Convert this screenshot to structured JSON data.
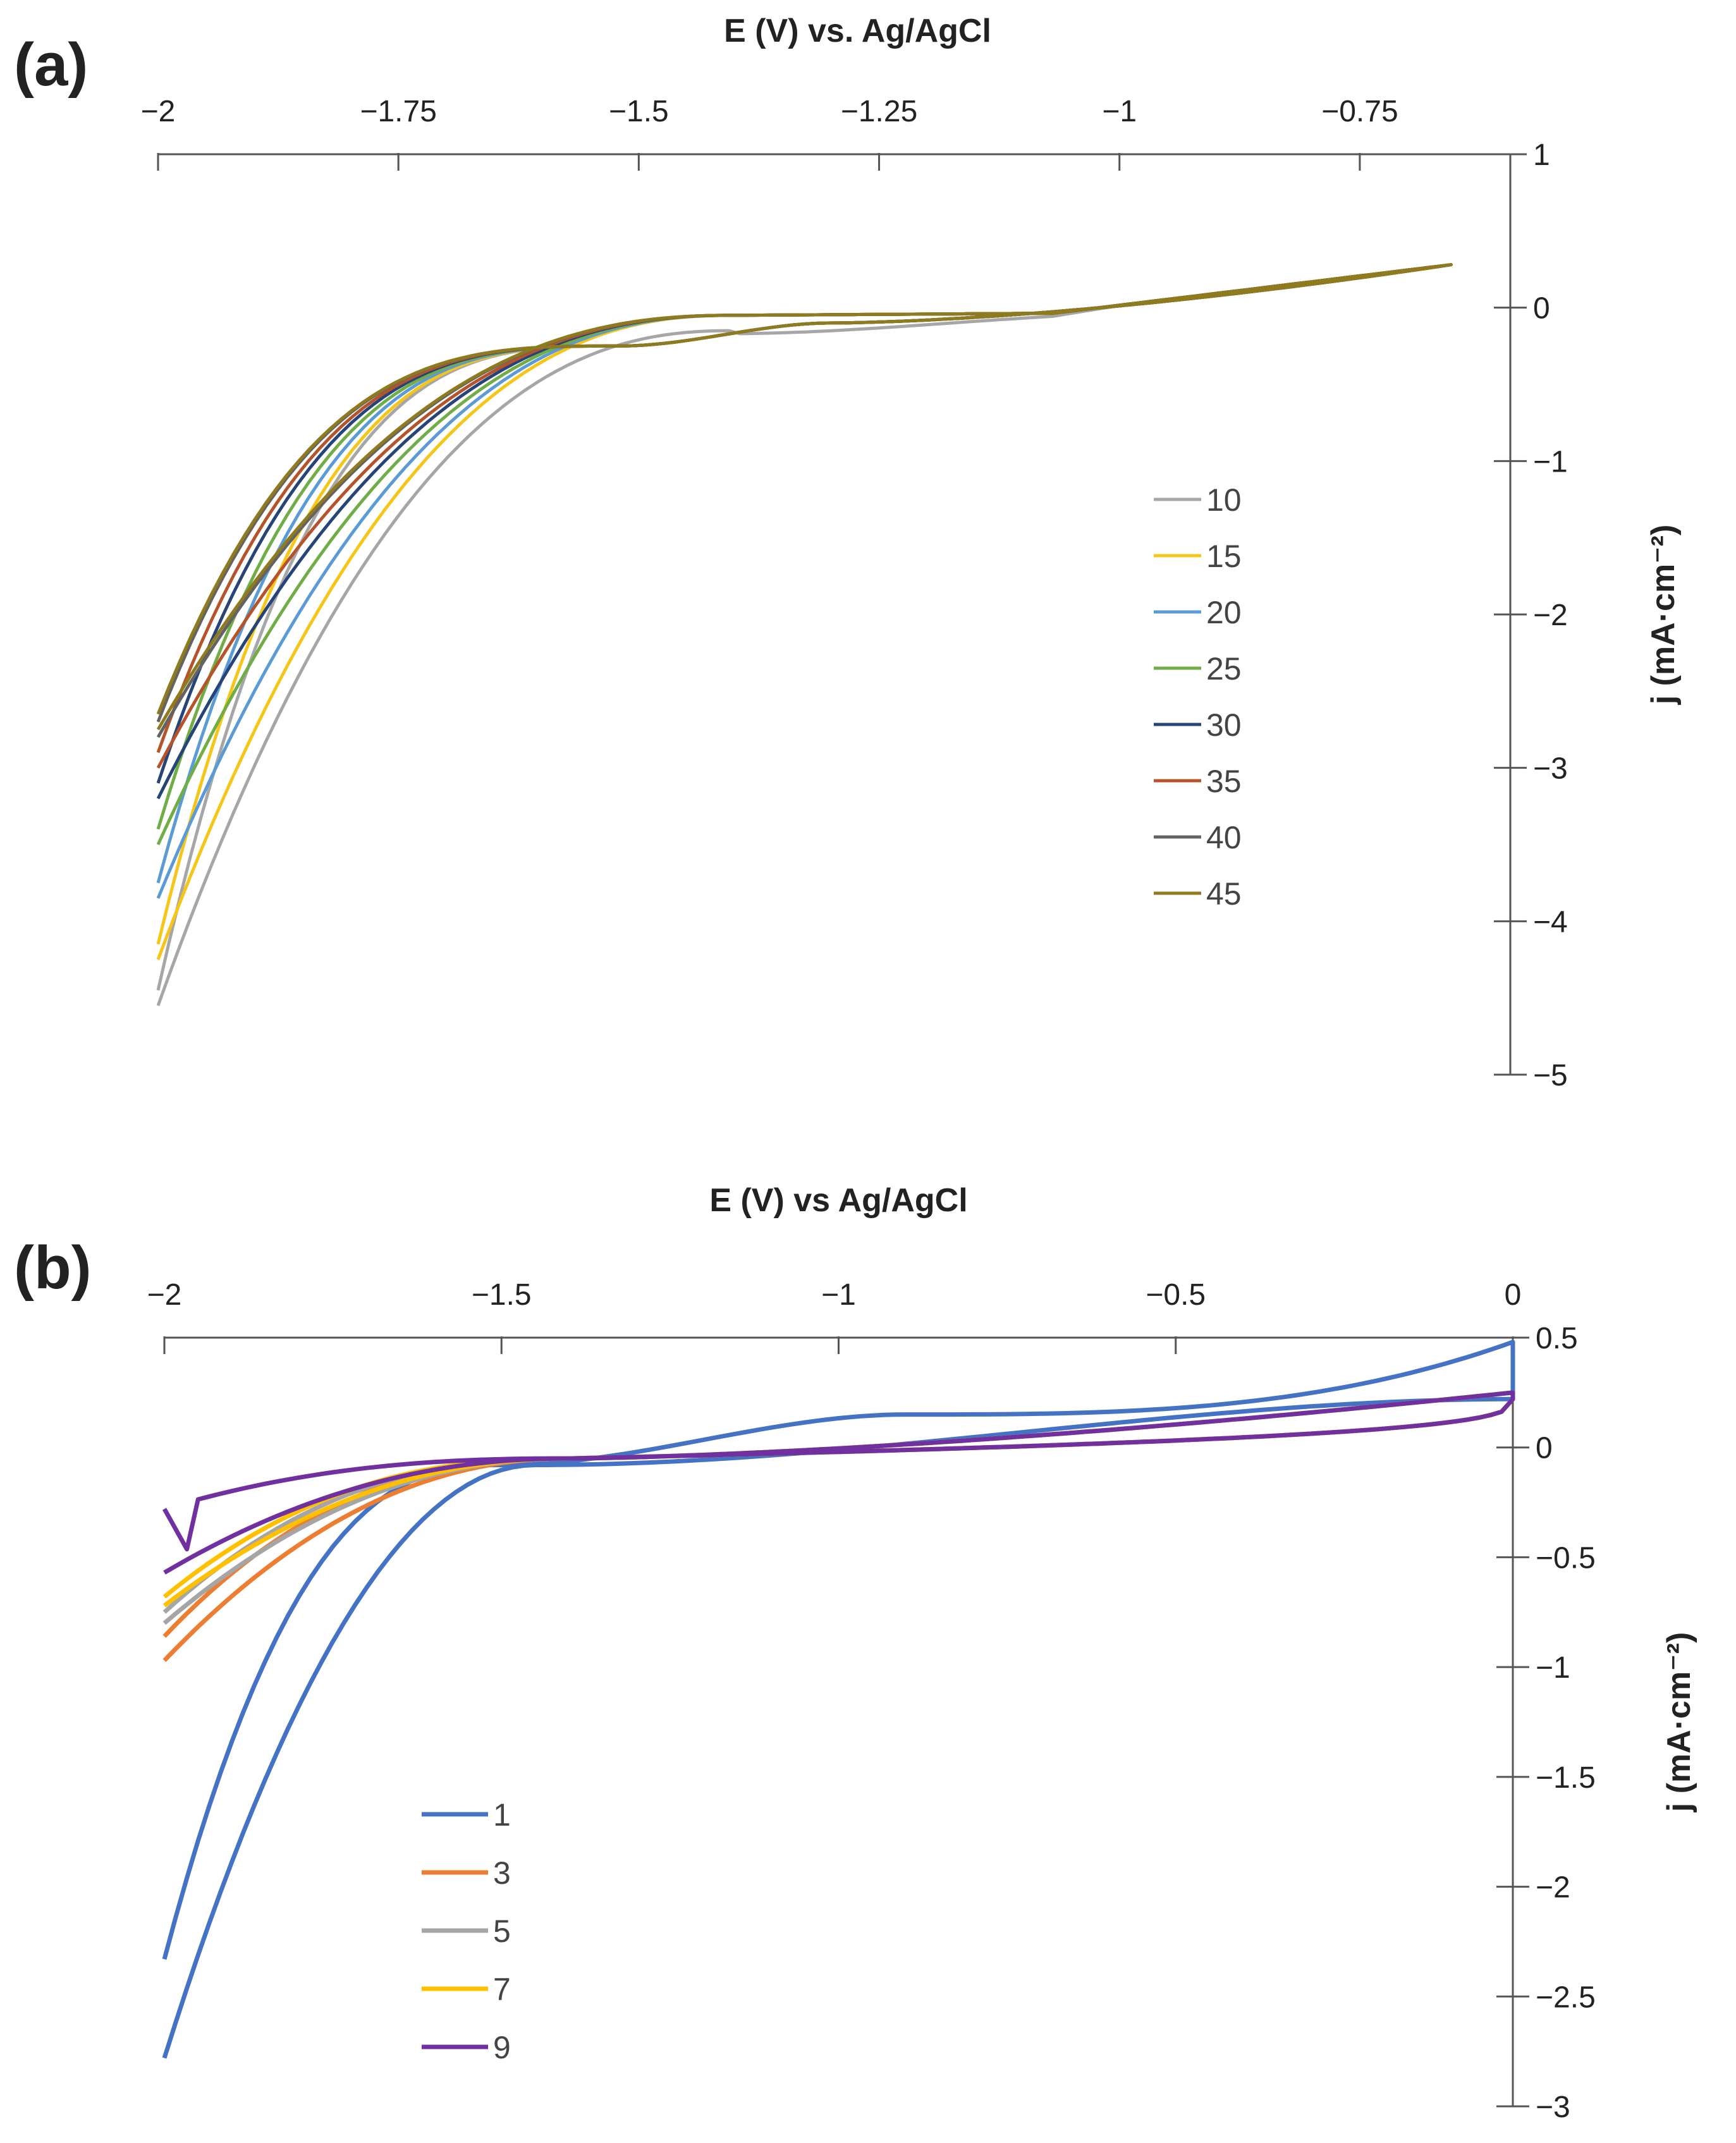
{
  "chart_data": [
    {
      "panel": "(a)",
      "type": "line",
      "xlabel": "E (V) vs. Ag/AgCl",
      "ylabel": "j (mA·cm⁻²)",
      "xlim": [
        -2,
        -0.65
      ],
      "ylim": [
        -5,
        1
      ],
      "x_ticks": [
        -2,
        -1.75,
        -1.5,
        -1.25,
        -1,
        -0.75
      ],
      "x_tick_labels": [
        "−2",
        "−1.75",
        "−1.5",
        "−1.25",
        "−1",
        "−0.75"
      ],
      "y_ticks": [
        1,
        0,
        -1,
        -2,
        -3,
        -4,
        -5
      ],
      "y_tick_labels": [
        "1",
        "0",
        "−1",
        "−2",
        "−3",
        "−4",
        "−5"
      ],
      "x_axis_position": "top",
      "y_axis_position": "right",
      "legend_position": "center-right",
      "series": [
        {
          "name": "10",
          "color": "#a6a6a6",
          "min_j": -4.55,
          "return_j": -0.25
        },
        {
          "name": "15",
          "color": "#f5c518",
          "min_j": -4.25,
          "return_j": -0.2
        },
        {
          "name": "20",
          "color": "#5b9bd5",
          "min_j": -3.85,
          "return_j": -0.17
        },
        {
          "name": "25",
          "color": "#70ad47",
          "min_j": -3.5,
          "return_j": -0.14
        },
        {
          "name": "30",
          "color": "#264478",
          "min_j": -3.2,
          "return_j": -0.12
        },
        {
          "name": "35",
          "color": "#b5532a",
          "min_j": -3.0,
          "return_j": -0.1
        },
        {
          "name": "40",
          "color": "#636363",
          "min_j": -2.8,
          "return_j": -0.09
        },
        {
          "name": "45",
          "color": "#8f7a1e",
          "min_j": -2.75,
          "return_j": -0.08
        }
      ]
    },
    {
      "panel": "(b)",
      "type": "line",
      "xlabel": "E (V) vs Ag/AgCl",
      "ylabel": "j (mA·cm⁻²)",
      "xlim": [
        -2,
        0
      ],
      "ylim": [
        -3,
        0.5
      ],
      "x_ticks": [
        -2,
        -1.5,
        -1,
        -0.5,
        0
      ],
      "x_tick_labels": [
        "−2",
        "−1.5",
        "−1",
        "−0.5",
        "0"
      ],
      "y_ticks": [
        0.5,
        0,
        -0.5,
        -1,
        -1.5,
        -2,
        -2.5,
        -3
      ],
      "y_tick_labels": [
        "0.5",
        "0",
        "−0.5",
        "−1",
        "−1.5",
        "−2",
        "−2.5",
        "−3"
      ],
      "x_axis_position": "top",
      "y_axis_position": "right",
      "legend_position": "lower-left",
      "series": [
        {
          "name": "1",
          "color": "#4472c4",
          "min_j": -2.78,
          "return_j": -2.33
        },
        {
          "name": "3",
          "color": "#ed7d31",
          "min_j": -0.97,
          "return_j": -0.86
        },
        {
          "name": "5",
          "color": "#a5a5a5",
          "min_j": -0.8,
          "return_j": -0.75
        },
        {
          "name": "7",
          "color": "#ffc000",
          "min_j": -0.72,
          "return_j": -0.68
        },
        {
          "name": "9",
          "color": "#7030a0",
          "min_j": -0.57,
          "return_j": -0.28
        }
      ]
    }
  ]
}
